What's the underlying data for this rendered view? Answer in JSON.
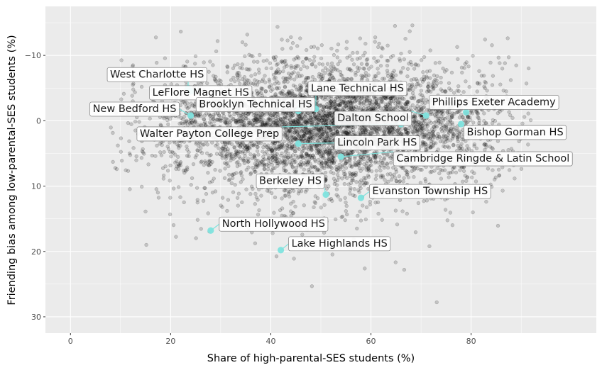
{
  "chart_data": {
    "type": "scatter",
    "title": "",
    "xlabel": "Share of high-parental-SES students (%)",
    "ylabel": "Friending bias among low-parental-SES students (%)",
    "xlim": [
      -5,
      105
    ],
    "ylim": [
      -17.5,
      32.5
    ],
    "y_reversed": true,
    "xticks": [
      0,
      20,
      40,
      60,
      80
    ],
    "yticks": [
      -10,
      0,
      10,
      20,
      30
    ],
    "xtick_labels": [
      "0",
      "20",
      "40",
      "60",
      "80"
    ],
    "ytick_labels": [
      "−10",
      "0",
      "10",
      "20",
      "30"
    ],
    "grid": true,
    "legend": "none",
    "background_color": "#ebebeb",
    "grid_color": "#ffffff",
    "point_color": "#000000",
    "highlight_color": "#7fe3de",
    "background_cloud": {
      "description_of_distribution": "thousands of translucent black points, densest around x 35-75 and y -4 to 4",
      "approx_count": 5000
    },
    "highlighted_schools": [
      {
        "name": "West Charlotte HS",
        "x": 23.5,
        "y": -5.0
      },
      {
        "name": "LeFlore Magnet HS",
        "x": 24.0,
        "y": -4.5
      },
      {
        "name": "New Bedford HS",
        "x": 24.0,
        "y": -0.8
      },
      {
        "name": "Brooklyn Technical HS",
        "x": 45.5,
        "y": -1.5
      },
      {
        "name": "Lane Technical HS",
        "x": 49.0,
        "y": -1.8
      },
      {
        "name": "Walter Payton College Prep",
        "x": 66.0,
        "y": 0.5
      },
      {
        "name": "Dalton School",
        "x": 71.0,
        "y": -0.8
      },
      {
        "name": "Phillips Exeter Academy",
        "x": 79.0,
        "y": -1.3
      },
      {
        "name": "Bishop Gorman HS",
        "x": 78.0,
        "y": 0.5
      },
      {
        "name": "Lincoln Park HS",
        "x": 45.5,
        "y": 3.5
      },
      {
        "name": "Cambridge Ringde & Latin School",
        "x": 54.0,
        "y": 5.5
      },
      {
        "name": "Berkeley HS",
        "x": 51.0,
        "y": 11.3
      },
      {
        "name": "Evanston Township HS",
        "x": 58.0,
        "y": 11.8
      },
      {
        "name": "North Hollywood HS",
        "x": 28.0,
        "y": 16.8
      },
      {
        "name": "Lake Highlands HS",
        "x": 42.0,
        "y": 19.8
      }
    ]
  }
}
